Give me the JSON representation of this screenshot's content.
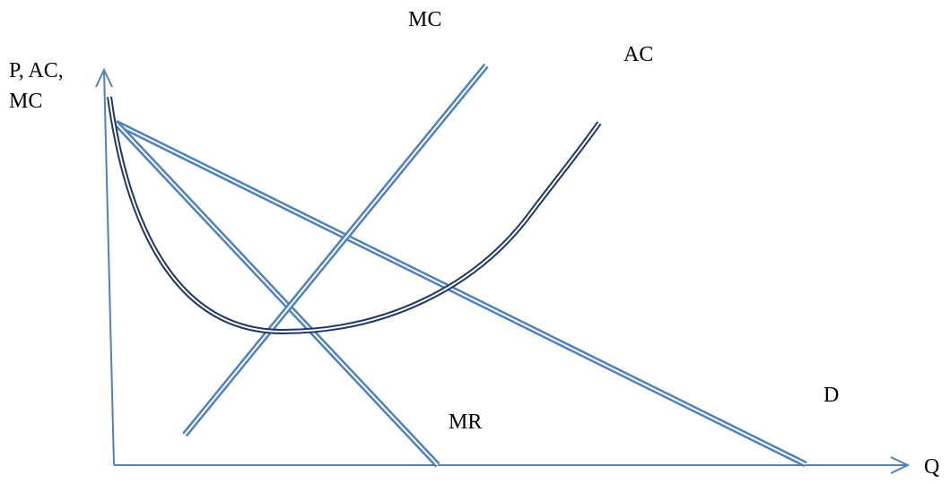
{
  "chart_data": {
    "type": "diagram",
    "axes": {
      "y_label_lines": [
        "P, AC,",
        "MC"
      ],
      "x_label": "Q"
    },
    "curve_labels": {
      "mc": "MC",
      "ac": "AC",
      "demand": "D",
      "marginal_revenue": "MR"
    },
    "colors": {
      "curves": "#4f81bd",
      "ac_curve": "#1f3864",
      "text": "#000000"
    }
  }
}
